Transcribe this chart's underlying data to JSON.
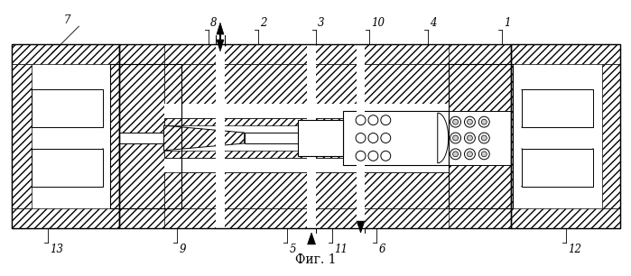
{
  "title": "Фиг. 1",
  "bg_color": "#ffffff",
  "lc": "#000000",
  "fig_width": 6.99,
  "fig_height": 3.06,
  "dpi": 100
}
